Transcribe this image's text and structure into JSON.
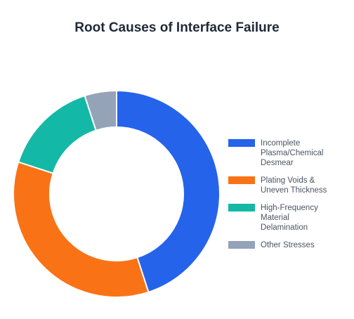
{
  "chart_data": {
    "type": "pie",
    "title": "Root Causes of Interface Failure",
    "categories": [
      "Incomplete Plasma/Chemical Desmear",
      "Plating Voids & Uneven Thickness",
      "High-Frequency Material Delamination",
      "Other Stresses"
    ],
    "legend_lines": [
      [
        "Incomplete",
        "Plasma/Chemical",
        "Desmear"
      ],
      [
        "Plating Voids &",
        "Uneven Thickness"
      ],
      [
        "High-Frequency",
        "Material",
        "Delamination"
      ],
      [
        "Other Stresses"
      ]
    ],
    "values": [
      45,
      35,
      15,
      5
    ],
    "colors": [
      "#2563eb",
      "#f97316",
      "#14b8a6",
      "#94a3b8"
    ],
    "donut": true,
    "legend_position": "right"
  }
}
